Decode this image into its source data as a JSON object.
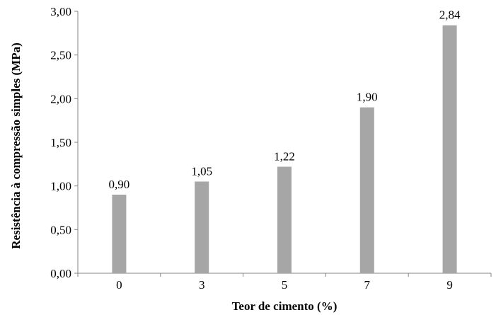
{
  "chart_data": {
    "type": "bar",
    "categories": [
      "0",
      "3",
      "5",
      "7",
      "9"
    ],
    "values": [
      0.9,
      1.05,
      1.22,
      1.9,
      2.84
    ],
    "value_labels": [
      "0,90",
      "1,05",
      "1,22",
      "1,90",
      "2,84"
    ],
    "title": "",
    "xlabel": "Teor de cimento (%)",
    "ylabel": "Resistência à compressão simples (MPa)",
    "ylim": [
      0,
      3
    ],
    "yticks": [
      0,
      0.5,
      1,
      1.5,
      2,
      2.5,
      3
    ],
    "ytick_labels": [
      "0,00",
      "0,50",
      "1,00",
      "1,50",
      "2,00",
      "2,50",
      "3,00"
    ],
    "grid": false,
    "legend": "none",
    "bar_color": "#a6a6a6",
    "axis_color": "#868686"
  }
}
